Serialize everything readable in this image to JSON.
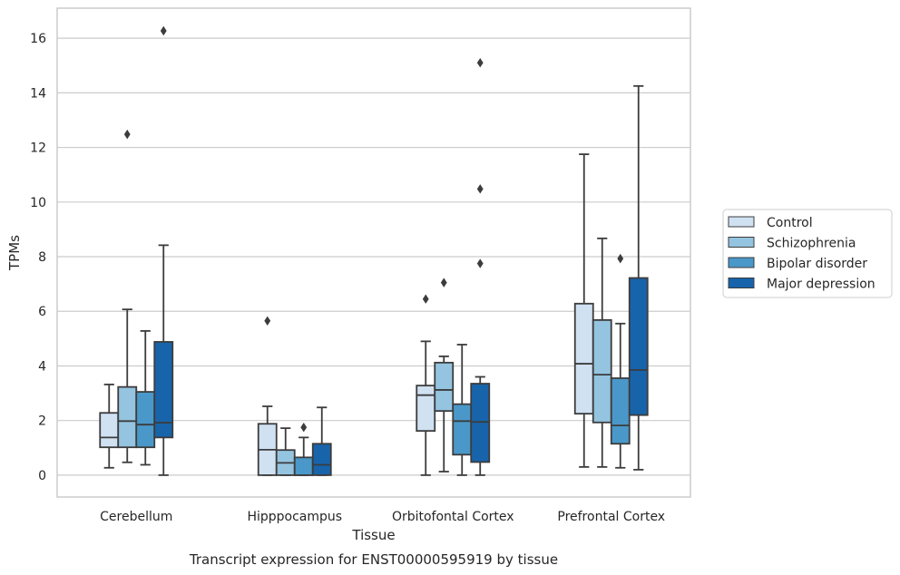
{
  "caption": "Transcript expression for ENST00000595919 by tissue",
  "chart_data": {
    "type": "box",
    "xlabel": "Tissue",
    "ylabel": "TPMs",
    "ylim": [
      -0.8,
      17.1
    ],
    "yticks": [
      0,
      2,
      4,
      6,
      8,
      10,
      12,
      14,
      16
    ],
    "grid": true,
    "legend_position": "right",
    "categories": [
      "Cerebellum",
      "Hipppocampus",
      "Orbitofontal Cortex",
      "Prefrontal Cortex"
    ],
    "series": [
      {
        "name": "Control",
        "color": "#d0e1f2",
        "boxes": [
          {
            "whislo": 0.27,
            "q1": 1.02,
            "median": 1.38,
            "q3": 2.28,
            "whishi": 3.32,
            "fliers": []
          },
          {
            "whislo": 0.0,
            "q1": 0.0,
            "median": 0.93,
            "q3": 1.88,
            "whishi": 2.52,
            "fliers": [
              5.65
            ]
          },
          {
            "whislo": 0.0,
            "q1": 1.62,
            "median": 2.93,
            "q3": 3.28,
            "whishi": 4.9,
            "fliers": [
              6.45
            ]
          },
          {
            "whislo": 0.3,
            "q1": 2.25,
            "median": 4.08,
            "q3": 6.28,
            "whishi": 11.75,
            "fliers": []
          }
        ]
      },
      {
        "name": "Schizophrenia",
        "color": "#94c4df",
        "boxes": [
          {
            "whislo": 0.47,
            "q1": 1.02,
            "median": 1.98,
            "q3": 3.23,
            "whishi": 6.07,
            "fliers": [
              12.48
            ]
          },
          {
            "whislo": 0.0,
            "q1": 0.0,
            "median": 0.45,
            "q3": 0.92,
            "whishi": 1.72,
            "fliers": []
          },
          {
            "whislo": 0.13,
            "q1": 2.35,
            "median": 3.12,
            "q3": 4.12,
            "whishi": 4.35,
            "fliers": [
              7.05
            ]
          },
          {
            "whislo": 0.3,
            "q1": 1.93,
            "median": 3.68,
            "q3": 5.68,
            "whishi": 8.67,
            "fliers": []
          }
        ]
      },
      {
        "name": "Bipolar disorder",
        "color": "#4a98c9",
        "boxes": [
          {
            "whislo": 0.38,
            "q1": 1.02,
            "median": 1.85,
            "q3": 3.05,
            "whishi": 5.28,
            "fliers": []
          },
          {
            "whislo": 0.0,
            "q1": 0.0,
            "median": 0.0,
            "q3": 0.65,
            "whishi": 1.38,
            "fliers": [
              1.75
            ]
          },
          {
            "whislo": 0.0,
            "q1": 0.75,
            "median": 1.98,
            "q3": 2.6,
            "whishi": 4.78,
            "fliers": []
          },
          {
            "whislo": 0.27,
            "q1": 1.15,
            "median": 1.82,
            "q3": 3.55,
            "whishi": 5.55,
            "fliers": [
              7.93
            ]
          }
        ]
      },
      {
        "name": "Major depression",
        "color": "#1764ab",
        "boxes": [
          {
            "whislo": 0.0,
            "q1": 1.38,
            "median": 1.92,
            "q3": 4.88,
            "whishi": 8.42,
            "fliers": [
              16.27
            ]
          },
          {
            "whislo": 0.0,
            "q1": 0.0,
            "median": 0.38,
            "q3": 1.15,
            "whishi": 2.48,
            "fliers": []
          },
          {
            "whislo": 0.0,
            "q1": 0.48,
            "median": 1.95,
            "q3": 3.35,
            "whishi": 3.6,
            "fliers": [
              7.75,
              10.48,
              15.1
            ]
          },
          {
            "whislo": 0.2,
            "q1": 2.2,
            "median": 3.85,
            "q3": 7.22,
            "whishi": 14.25,
            "fliers": []
          }
        ]
      }
    ]
  }
}
